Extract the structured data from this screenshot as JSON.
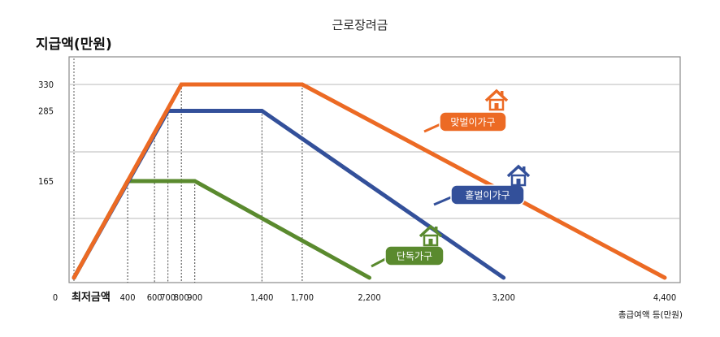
{
  "chart_data": {
    "type": "line",
    "title": "근로장려금",
    "ylabel": "지급액(만원)",
    "xlabel": "총급여액 등(만원)",
    "origin_label": "0",
    "min_wage_label": "최저금액",
    "y_ticks": [
      165,
      285,
      330
    ],
    "x_ticks": [
      400,
      600,
      700,
      800,
      900,
      1400,
      1700,
      2200,
      3200,
      4400
    ],
    "x_tick_labels": [
      "400",
      "600",
      "700",
      "800",
      "900",
      "1,400",
      "1,700",
      "2,200",
      "3,200",
      "4,400"
    ],
    "ylim": [
      0,
      365
    ],
    "grid": true,
    "series": [
      {
        "name": "맞벌이가구",
        "color": "#ec6a24",
        "points": [
          [
            0,
            0
          ],
          [
            800,
            330
          ],
          [
            1700,
            330
          ],
          [
            4400,
            0
          ]
        ]
      },
      {
        "name": "홑벌이가구",
        "color": "#33509a",
        "points": [
          [
            0,
            0
          ],
          [
            700,
            285
          ],
          [
            1400,
            285
          ],
          [
            3200,
            0
          ]
        ]
      },
      {
        "name": "단독가구",
        "color": "#5a8a2e",
        "points": [
          [
            0,
            0
          ],
          [
            400,
            165
          ],
          [
            900,
            165
          ],
          [
            2200,
            0
          ]
        ]
      }
    ],
    "icon": "house-icon"
  }
}
